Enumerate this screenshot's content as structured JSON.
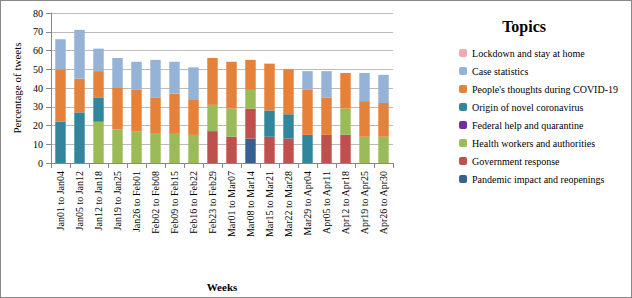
{
  "chart_data": {
    "type": "bar",
    "stacked": true,
    "x_label": "Weeks",
    "y_label": "Percentage of tweets",
    "legend_title": "Topics",
    "legend": "right",
    "grid": true,
    "categories": [
      "Jan01 to Jan04",
      "Jan05 to Jan12",
      "Jan12 to Jan18",
      "Jan19 to Jan25",
      "Jan26 to Feb01",
      "Feb02 to Feb08",
      "Feb09 to Feb15",
      "Feb16 to Feb22",
      "Feb23 to Feb29",
      "Mar01 to Mar07",
      "Mar08 to Mar14",
      "Mar15 to Mar21",
      "Mar22 to Mar28",
      "Mar29 to Apr04",
      "Apr05 to Apr11",
      "Apr12 to Apr18",
      "Apr19 to Apr25",
      "Apr26 to Apr30"
    ],
    "ylim": [
      0,
      80
    ],
    "yticks": [
      0,
      10,
      20,
      30,
      40,
      50,
      60,
      70,
      80
    ],
    "series": [
      {
        "name": "Pandemic impact and reopenings",
        "color": "#366092",
        "values": [
          0,
          0,
          0,
          0,
          0,
          0,
          0,
          0,
          0,
          0,
          13,
          0,
          0,
          0,
          0,
          0,
          0,
          0
        ]
      },
      {
        "name": "Government response",
        "color": "#c0504d",
        "values": [
          0,
          0,
          0,
          0,
          0,
          0,
          0,
          0,
          17,
          14,
          16,
          14,
          13,
          0,
          15,
          15,
          0,
          0
        ]
      },
      {
        "name": "Health workers and authorities",
        "color": "#9bbb59",
        "values": [
          0,
          0,
          22,
          18,
          17,
          16,
          16,
          15,
          14,
          15,
          10,
          0,
          0,
          0,
          0,
          14,
          14,
          14
        ]
      },
      {
        "name": "Federal help and quarantine",
        "color": "#7030a0",
        "values": [
          0,
          0,
          0,
          0,
          0,
          0,
          0,
          0,
          0,
          0,
          0,
          0,
          0,
          0,
          0,
          0,
          0,
          0
        ]
      },
      {
        "name": "Origin of novel coronavirus",
        "color": "#31859c",
        "values": [
          22,
          27,
          13,
          0,
          0,
          0,
          0,
          0,
          0,
          0,
          0,
          14,
          13,
          15,
          0,
          0,
          0,
          0
        ]
      },
      {
        "name": "People's thoughts during COVID-19",
        "color": "#e6813a",
        "values": [
          28,
          18,
          14,
          22,
          22,
          19,
          21,
          19,
          25,
          25,
          16,
          25,
          24,
          24,
          20,
          19,
          19,
          18
        ]
      },
      {
        "name": "Case statistics",
        "color": "#95b3d7",
        "values": [
          16,
          26,
          12,
          16,
          15,
          20,
          17,
          17,
          0,
          0,
          0,
          0,
          0,
          10,
          14,
          0,
          15,
          15
        ]
      },
      {
        "name": "Lockdown and stay at home",
        "color": "#f2a7b4",
        "values": [
          0,
          0,
          0,
          0,
          0,
          0,
          0,
          0,
          0,
          0,
          0,
          0,
          0,
          0,
          0,
          0,
          0,
          0
        ]
      }
    ]
  }
}
